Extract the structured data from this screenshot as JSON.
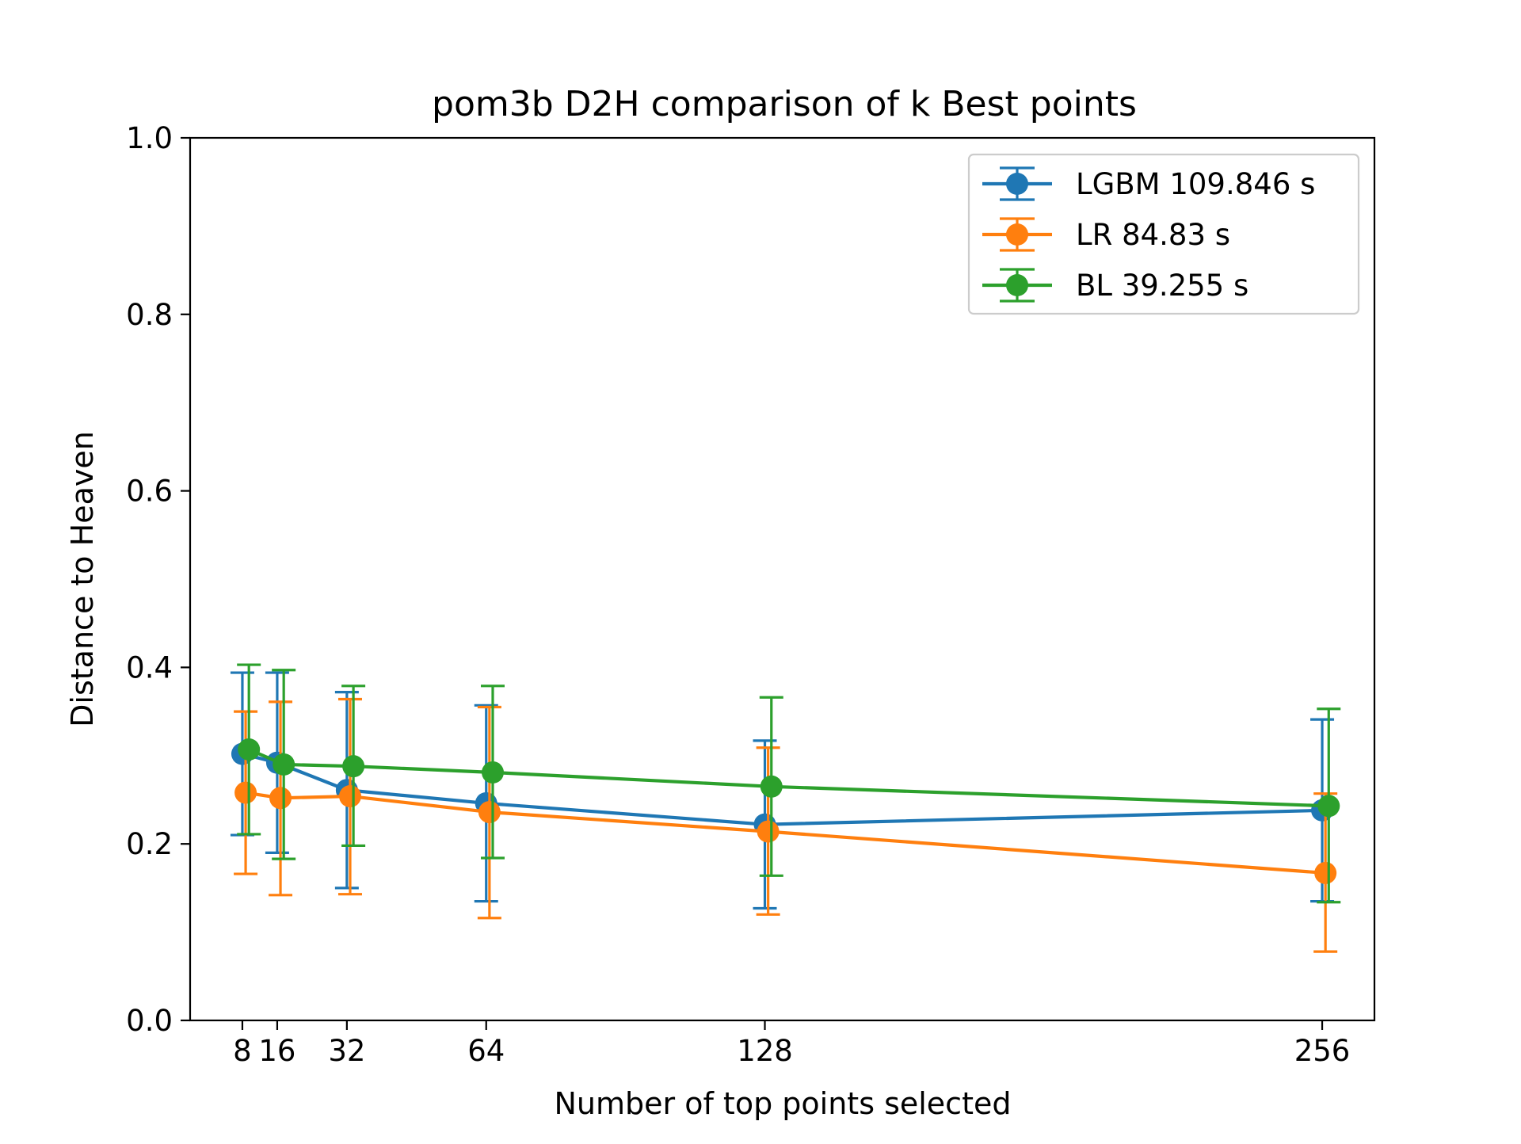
{
  "chart_data": {
    "type": "line",
    "title": "pom3b D2H comparison of k Best points",
    "xlabel": "Number of top points selected",
    "ylabel": "Distance to Heaven",
    "xlim": [
      -4,
      268
    ],
    "ylim": [
      0.0,
      1.0
    ],
    "x_ticks": [
      8,
      16,
      32,
      64,
      128,
      256
    ],
    "x_tick_labels": [
      "8",
      "16",
      "32",
      "64",
      "128",
      "256"
    ],
    "y_ticks": [
      0.0,
      0.2,
      0.4,
      0.6,
      0.8,
      1.0
    ],
    "y_tick_labels": [
      "0.0",
      "0.2",
      "0.4",
      "0.6",
      "0.8",
      "1.0"
    ],
    "grid": false,
    "legend_position": "top-right",
    "series": [
      {
        "name": "LGBM 109.846 s",
        "color": "#1f77b4",
        "x_offset": 0,
        "x": [
          8,
          16,
          32,
          64,
          128,
          256
        ],
        "y": [
          0.302,
          0.292,
          0.261,
          0.246,
          0.222,
          0.238
        ],
        "err_low": [
          0.21,
          0.19,
          0.15,
          0.135,
          0.127,
          0.135
        ],
        "err_high": [
          0.394,
          0.394,
          0.372,
          0.357,
          0.317,
          0.341
        ]
      },
      {
        "name": "LR 84.83 s",
        "color": "#ff7f0e",
        "x_offset": 0.75,
        "x": [
          8,
          16,
          32,
          64,
          128,
          256
        ],
        "y": [
          0.258,
          0.252,
          0.254,
          0.236,
          0.214,
          0.167
        ],
        "err_low": [
          0.166,
          0.142,
          0.143,
          0.116,
          0.12,
          0.078
        ],
        "err_high": [
          0.35,
          0.361,
          0.364,
          0.355,
          0.309,
          0.257
        ]
      },
      {
        "name": "BL 39.255 s",
        "color": "#2ca02c",
        "x_offset": 1.5,
        "x": [
          8,
          16,
          32,
          64,
          128,
          256
        ],
        "y": [
          0.307,
          0.29,
          0.288,
          0.281,
          0.265,
          0.243
        ],
        "err_low": [
          0.211,
          0.183,
          0.198,
          0.184,
          0.164,
          0.134
        ],
        "err_high": [
          0.403,
          0.397,
          0.379,
          0.379,
          0.366,
          0.353
        ]
      }
    ]
  }
}
